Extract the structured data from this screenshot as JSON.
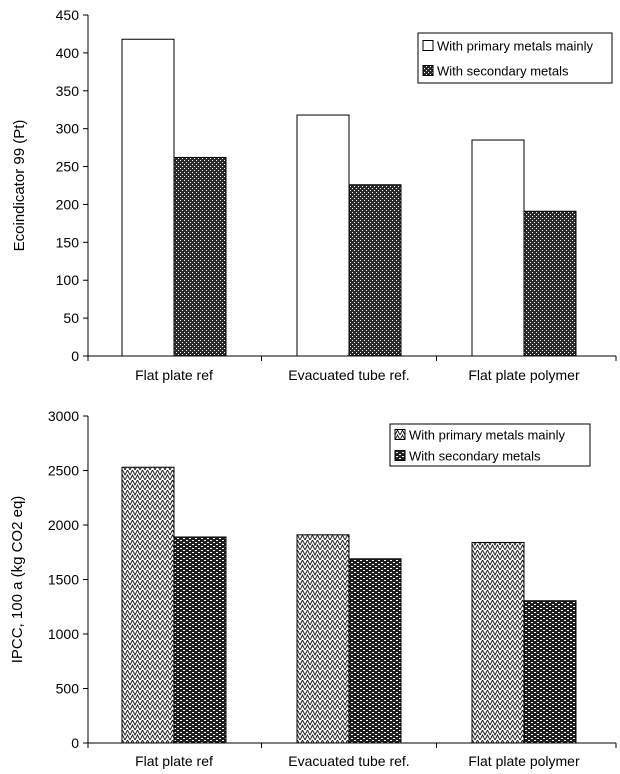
{
  "chart_data": [
    {
      "type": "bar",
      "categories": [
        "Flat plate ref",
        "Evacuated  tube ref.",
        "Flat plate polymer"
      ],
      "series": [
        {
          "name": "With primary metals mainly",
          "values": [
            418,
            318,
            285
          ],
          "fill": "white"
        },
        {
          "name": "With secondary metals",
          "values": [
            262,
            226,
            191
          ],
          "fill": "dots-dark"
        }
      ],
      "xlabel": "",
      "ylabel": "Ecoindicator 99 (Pt)",
      "ylim": [
        0,
        450
      ],
      "yticks": [
        0,
        50,
        100,
        150,
        200,
        250,
        300,
        350,
        400,
        450
      ],
      "grid": false,
      "legend_position": "top-right"
    },
    {
      "type": "bar",
      "categories": [
        "Flat plate ref",
        "Evacuated tube ref.",
        "Flat plate polymer"
      ],
      "series": [
        {
          "name": "With primary metals mainly",
          "values": [
            2530,
            1910,
            1840
          ],
          "fill": "zigzag"
        },
        {
          "name": "With secondary metals",
          "values": [
            1890,
            1690,
            1305
          ],
          "fill": "bricks"
        }
      ],
      "xlabel": "",
      "ylabel": "IPCC, 100 a (kg CO2 eq)",
      "ylim": [
        0,
        3000
      ],
      "yticks": [
        0,
        500,
        1000,
        1500,
        2000,
        2500,
        3000
      ],
      "grid": false,
      "legend_position": "top-right"
    }
  ]
}
